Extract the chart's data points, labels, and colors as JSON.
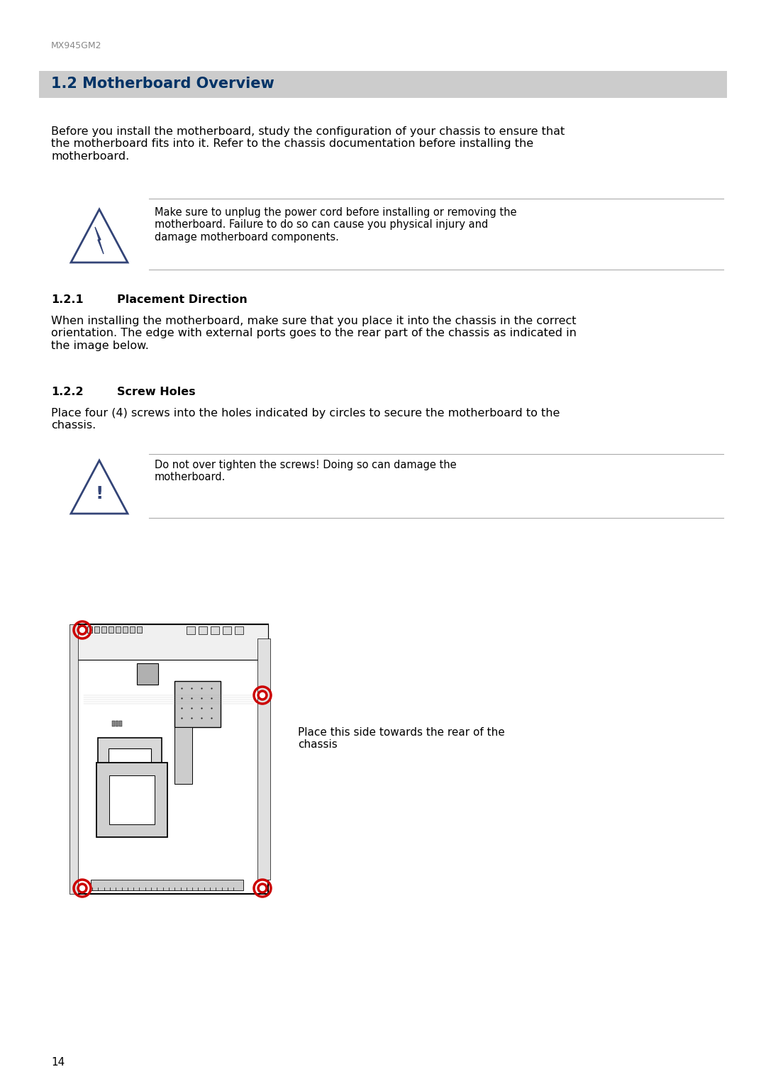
{
  "page_header": "MX945GM2",
  "section_title": "1.2 Motherboard Overview",
  "section_title_bg": "#cccccc",
  "section_title_color": "#003366",
  "body_text": "Before you install the motherboard, study the configuration of your chassis to ensure that\nthe motherboard fits into it. Refer to the chassis documentation before installing the\nmotherboard.",
  "warning1_text": "Make sure to unplug the power cord before installing or removing the\nmotherboard. Failure to do so can cause you physical injury and\ndamage motherboard components.",
  "subsection1_num": "1.2.1",
  "subsection1_title": "Placement Direction",
  "subsection1_body": "When installing the motherboard, make sure that you place it into the chassis in the correct\norientation. The edge with external ports goes to the rear part of the chassis as indicated in\nthe image below.",
  "subsection2_num": "1.2.2",
  "subsection2_title": "Screw Holes",
  "subsection2_body": "Place four (4) screws into the holes indicated by circles to secure the motherboard to the\nchassis.",
  "warning2_text": "Do not over tighten the screws! Doing so can damage the\nmotherboard.",
  "caption_text": "Place this side towards the rear of the\nchassis",
  "page_number": "14",
  "bg_color": "#ffffff",
  "text_color": "#000000",
  "header_text_color": "#888888",
  "screw_circle_color": "#cc0000",
  "line_color": "#555555"
}
